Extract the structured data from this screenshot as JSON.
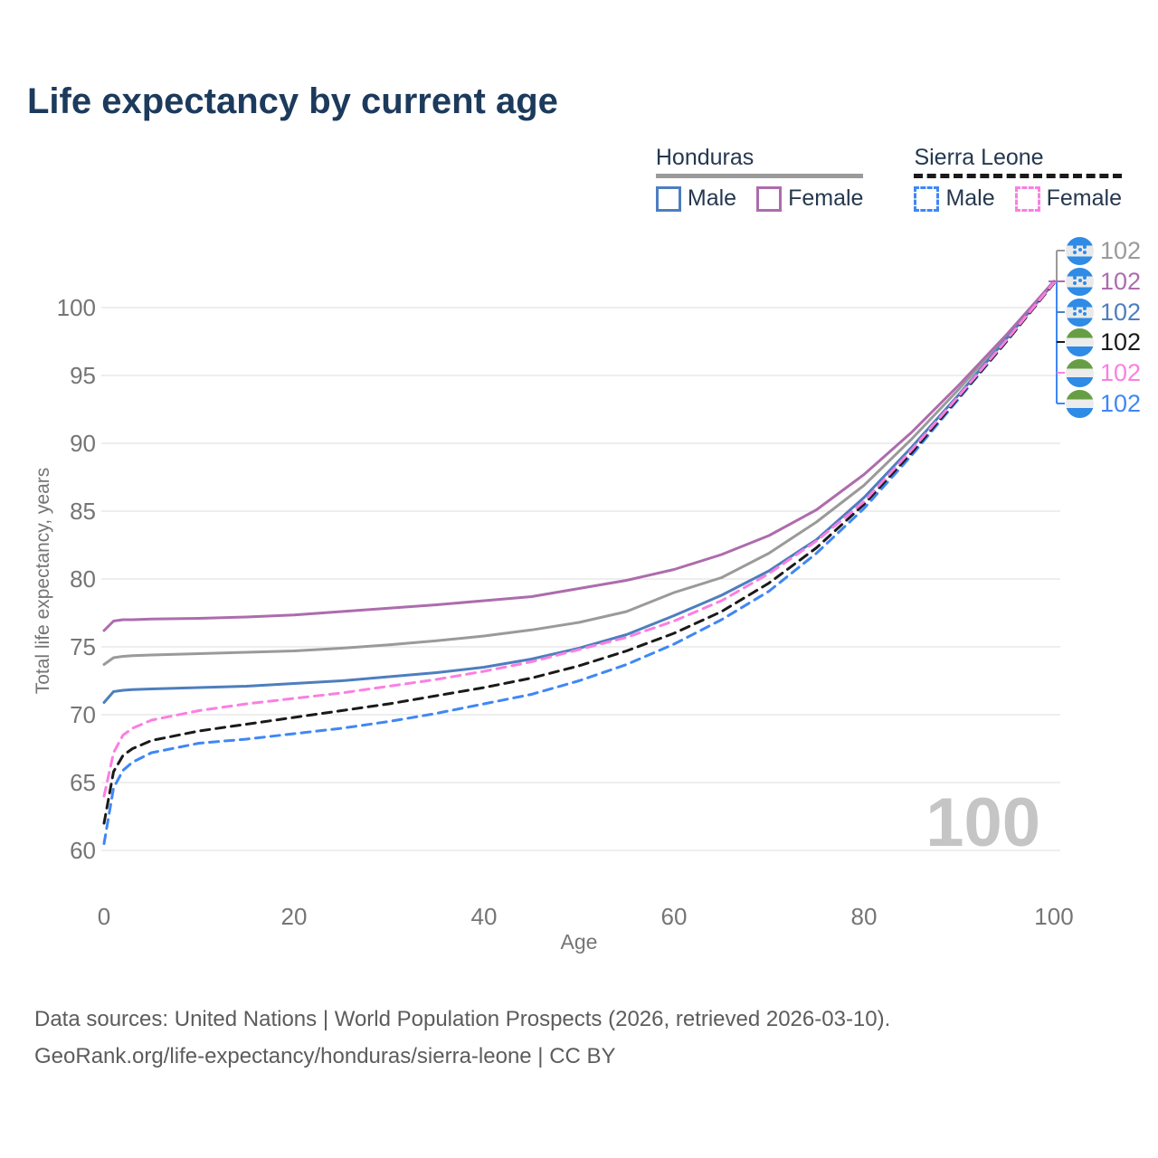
{
  "title": "Life expectancy by current age",
  "legend": {
    "groups": [
      {
        "label": "Honduras",
        "line_style": "solid",
        "rule_color": "#9a9a9a",
        "items": [
          {
            "label": "Male",
            "color": "#4d7ebf",
            "dashed": false
          },
          {
            "label": "Female",
            "color": "#ad6cad",
            "dashed": false
          }
        ]
      },
      {
        "label": "Sierra Leone",
        "line_style": "dashed",
        "rule_color": "#1a1a1a",
        "items": [
          {
            "label": "Male",
            "color": "#3f87f5",
            "dashed": true
          },
          {
            "label": "Female",
            "color": "#fb7fe1",
            "dashed": true
          }
        ]
      }
    ]
  },
  "chart_data": {
    "type": "line",
    "title": "Life expectancy by current age",
    "xlabel": "Age",
    "ylabel": "Total life expectancy, years",
    "xlim": [
      0,
      100
    ],
    "ylim": [
      60,
      102
    ],
    "x_ticks": [
      0,
      20,
      40,
      60,
      80,
      100
    ],
    "y_ticks": [
      60,
      65,
      70,
      75,
      80,
      85,
      90,
      95,
      100
    ],
    "grid": "horizontal",
    "ages": [
      0,
      1,
      2,
      3,
      5,
      10,
      15,
      20,
      25,
      30,
      35,
      40,
      45,
      50,
      55,
      60,
      65,
      70,
      75,
      80,
      85,
      90,
      95,
      100
    ],
    "series": [
      {
        "name": "Honduras Both sexes",
        "country": "Honduras",
        "sex": "Both",
        "color": "#9a9a9a",
        "dashed": false,
        "values": [
          73.7,
          74.2,
          74.3,
          74.35,
          74.4,
          74.5,
          74.6,
          74.7,
          74.9,
          75.15,
          75.45,
          75.8,
          76.25,
          76.8,
          77.6,
          79.0,
          80.1,
          81.9,
          84.2,
          86.9,
          90.3,
          94.0,
          97.9,
          101.9
        ]
      },
      {
        "name": "Honduras Male",
        "country": "Honduras",
        "sex": "Male",
        "color": "#4d7ebf",
        "dashed": false,
        "values": [
          70.9,
          71.7,
          71.8,
          71.85,
          71.9,
          72.0,
          72.1,
          72.3,
          72.5,
          72.8,
          73.1,
          73.5,
          74.1,
          74.9,
          75.9,
          77.3,
          78.8,
          80.6,
          82.9,
          86.0,
          89.7,
          93.6,
          97.7,
          101.85
        ]
      },
      {
        "name": "Honduras Female",
        "country": "Honduras",
        "sex": "Female",
        "color": "#ad6cad",
        "dashed": false,
        "values": [
          76.2,
          76.9,
          77.0,
          77.0,
          77.05,
          77.1,
          77.2,
          77.35,
          77.6,
          77.85,
          78.1,
          78.4,
          78.7,
          79.3,
          79.9,
          80.7,
          81.8,
          83.2,
          85.1,
          87.7,
          90.8,
          94.3,
          98.0,
          101.95
        ]
      },
      {
        "name": "Sierra Leone Male",
        "country": "Sierra Leone",
        "sex": "Male",
        "color": "#3f87f5",
        "dashed": true,
        "values": [
          60.5,
          64.6,
          65.9,
          66.5,
          67.2,
          67.9,
          68.2,
          68.6,
          69.0,
          69.5,
          70.1,
          70.8,
          71.5,
          72.5,
          73.7,
          75.2,
          77.0,
          79.1,
          81.9,
          85.2,
          89.1,
          93.3,
          97.5,
          101.8
        ]
      },
      {
        "name": "Sierra Leone Both sexes",
        "country": "Sierra Leone",
        "sex": "Both",
        "color": "#1a1a1a",
        "dashed": true,
        "values": [
          62.0,
          65.8,
          67.0,
          67.5,
          68.1,
          68.8,
          69.3,
          69.8,
          70.3,
          70.8,
          71.4,
          72.0,
          72.7,
          73.6,
          74.7,
          76.0,
          77.6,
          79.7,
          82.3,
          85.5,
          89.3,
          93.4,
          97.5,
          101.8
        ]
      },
      {
        "name": "Sierra Leone Female",
        "country": "Sierra Leone",
        "sex": "Female",
        "color": "#fb7fe1",
        "dashed": true,
        "values": [
          64.0,
          67.2,
          68.5,
          69.0,
          69.6,
          70.3,
          70.8,
          71.2,
          71.6,
          72.1,
          72.6,
          73.2,
          73.9,
          74.8,
          75.7,
          76.9,
          78.4,
          80.4,
          82.8,
          85.7,
          89.5,
          93.5,
          97.6,
          101.85
        ]
      }
    ]
  },
  "end_labels": [
    {
      "value": "102",
      "color": "#9a9a9a",
      "flag": "honduras",
      "series": "Honduras Both sexes"
    },
    {
      "value": "102",
      "color": "#ad6cad",
      "flag": "honduras",
      "series": "Honduras Female"
    },
    {
      "value": "102",
      "color": "#4d7ebf",
      "flag": "honduras",
      "series": "Honduras Male"
    },
    {
      "value": "102",
      "color": "#1a1a1a",
      "flag": "sierra-leone",
      "series": "Sierra Leone Both sexes"
    },
    {
      "value": "102",
      "color": "#fb7fe1",
      "flag": "sierra-leone",
      "series": "Sierra Leone Female"
    },
    {
      "value": "102",
      "color": "#3f87f5",
      "flag": "sierra-leone",
      "series": "Sierra Leone Male"
    }
  ],
  "flag_colors": {
    "honduras": {
      "band": "#2e8be6",
      "middle": "#e9e9e9",
      "star": "#2e8be6"
    },
    "sierra_leone": {
      "top": "#679e45",
      "middle": "#ececec",
      "bottom": "#2e8be6"
    }
  },
  "watermark": "100",
  "footer": {
    "line1": "Data sources: United Nations | World Population Prospects (2026, retrieved 2026-03-10).",
    "line2": "GeoRank.org/life-expectancy/honduras/sierra-leone | CC BY"
  }
}
